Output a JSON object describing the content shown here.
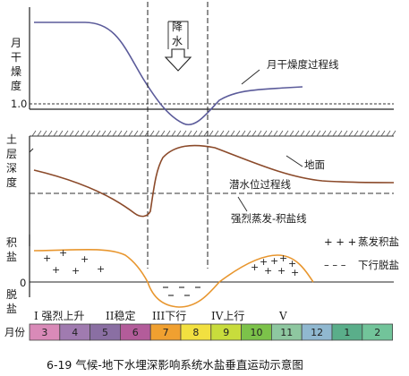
{
  "figure": {
    "caption": "6-19 气候-地下水埋深影响系统水盐垂直运动示意图",
    "rain_label": "降水",
    "dryness_axis_label": "月干燥度",
    "dryness_value_label": "1.0",
    "dryness_curve_label": "月干燥度过程线",
    "depth_axis_label": "土层深度",
    "ground_label": "地面",
    "water_table_label": "潜水位过程线",
    "evap_line_label": "强烈蒸发-积盐线",
    "salt_axis_top": "积盐",
    "salt_axis_zero": "0",
    "salt_axis_bottom": "脱盐",
    "legend_accumulation_symbol": "+ + +",
    "legend_accumulation_label": "蒸发积盐",
    "legend_leaching_symbol": "– – –",
    "legend_leaching_label": "下行脱盐",
    "month_axis_label": "月份"
  },
  "stages": [
    {
      "label": "I 强烈上升"
    },
    {
      "label": "II稳定"
    },
    {
      "label": "III下行"
    },
    {
      "label": "IV上行"
    },
    {
      "label": "V"
    }
  ],
  "months": [
    {
      "num": "3",
      "color": "#d98ab8"
    },
    {
      "num": "4",
      "color": "#a07bb0"
    },
    {
      "num": "5",
      "color": "#8a6fa3"
    },
    {
      "num": "6",
      "color": "#b35c9a"
    },
    {
      "num": "7",
      "color": "#f0a030"
    },
    {
      "num": "8",
      "color": "#f2e040"
    },
    {
      "num": "9",
      "color": "#c8dc3c"
    },
    {
      "num": "10",
      "color": "#7cc24a"
    },
    {
      "num": "11",
      "color": "#8ec7a0"
    },
    {
      "num": "12",
      "color": "#90b8d0"
    },
    {
      "num": "1",
      "color": "#5aae8a"
    },
    {
      "num": "2",
      "color": "#72c49a"
    }
  ],
  "colors": {
    "dryness_curve": "#5b5b9a",
    "water_table_curve": "#8b4a2a",
    "salt_curve": "#e8962e",
    "ground_hatch": "#555555"
  }
}
